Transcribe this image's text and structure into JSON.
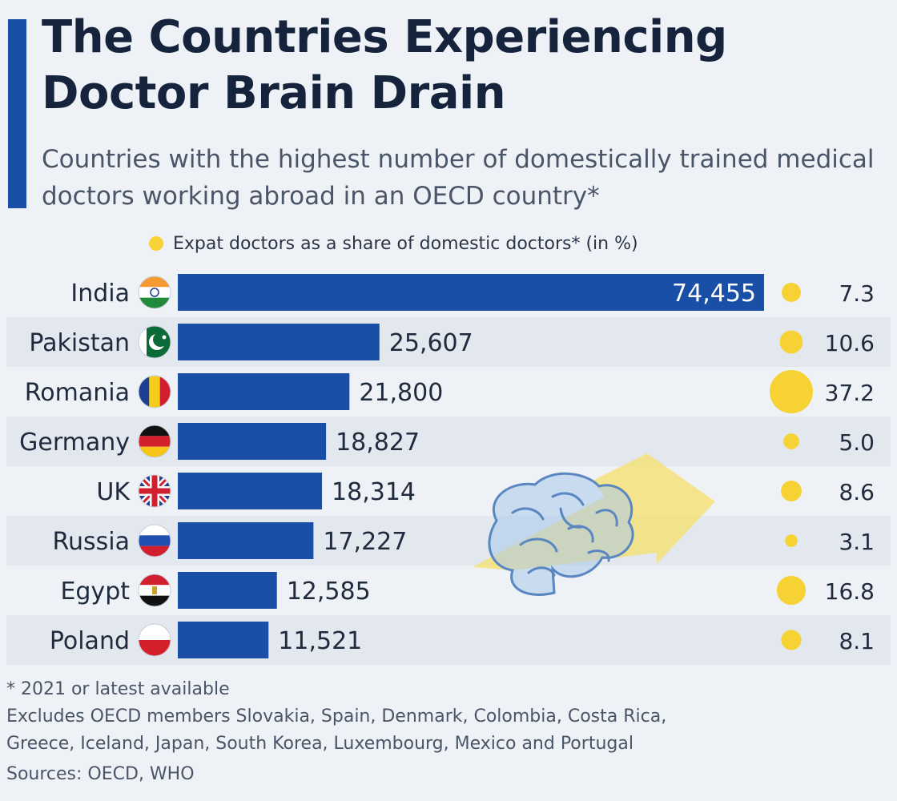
{
  "chart_data": {
    "type": "bar",
    "title": "The Countries Experiencing Doctor Brain Drain",
    "subtitle": "Countries with the highest number of domestically trained medical doctors working abroad in an OECD country*",
    "categories": [
      "India",
      "Pakistan",
      "Romania",
      "Germany",
      "UK",
      "Russia",
      "Egypt",
      "Poland"
    ],
    "series": [
      {
        "values": [
          74455,
          25607,
          21800,
          18827,
          18314,
          17227,
          12585,
          11521
        ]
      },
      {
        "name": "Expat doctors as a share of domestic doctors* (in %)",
        "values": [
          7.3,
          10.6,
          37.2,
          5.0,
          8.6,
          3.1,
          16.8,
          8.1
        ]
      }
    ],
    "value_labels": [
      "74,455",
      "25,607",
      "21,800",
      "18,827",
      "18,314",
      "17,227",
      "12,585",
      "11,521"
    ],
    "share_labels": [
      "7.3",
      "10.6",
      "37.2",
      "5.0",
      "8.6",
      "3.1",
      "16.8",
      "8.1"
    ],
    "legend": "Expat doctors as a share of domestic doctors* (in %)",
    "orientation": "horizontal",
    "grid": false
  },
  "colors": {
    "bar": "#1a4fa8",
    "dot": "#f7d234",
    "row_band": "#e3e8ef",
    "arrow": "#f3e27a",
    "brain": "#a9c8ea"
  },
  "flag_icons": [
    "india-flag-icon",
    "pakistan-flag-icon",
    "romania-flag-icon",
    "germany-flag-icon",
    "uk-flag-icon",
    "russia-flag-icon",
    "egypt-flag-icon",
    "poland-flag-icon"
  ],
  "footer": {
    "note": "* 2021 or latest available",
    "excludes_line1": "Excludes OECD members Slovakia, Spain, Denmark, Colombia, Costa Rica,",
    "excludes_line2": "Greece, Iceland, Japan, South Korea, Luxembourg, Mexico and Portugal",
    "sources": "Sources: OECD, WHO"
  }
}
